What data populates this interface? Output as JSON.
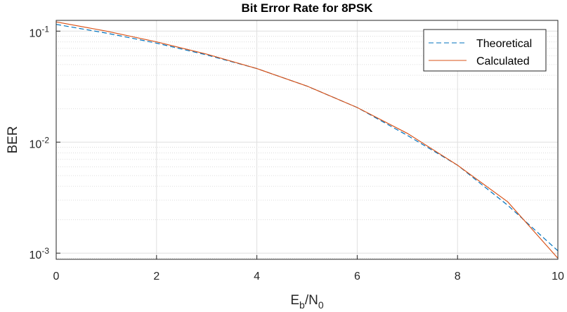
{
  "chart_data": {
    "type": "line",
    "title": "Bit Error Rate for 8PSK",
    "xlabel": {
      "base": "E",
      "sub1": "b",
      "mid": "/N",
      "sub2": "0"
    },
    "ylabel": "BER",
    "xlim": [
      0,
      10
    ],
    "ylim": [
      0.00088,
      0.125
    ],
    "yscale": "log",
    "grid": true,
    "minor_grid": true,
    "legend_position": "top-right",
    "x_ticks": [
      "0",
      "2",
      "4",
      "6",
      "8",
      "10"
    ],
    "y_ticks": [
      {
        "value": 0.1,
        "base": "10",
        "exp": "-1"
      },
      {
        "value": 0.01,
        "base": "10",
        "exp": "-2"
      },
      {
        "value": 0.001,
        "base": "10",
        "exp": "-3"
      }
    ],
    "x": [
      0,
      1,
      2,
      3,
      4,
      5,
      6,
      7,
      8,
      9,
      10
    ],
    "series": [
      {
        "name": "Theoretical",
        "style": "dashed",
        "color": "#0072BD",
        "values": [
          0.115,
          0.096,
          0.078,
          0.061,
          0.046,
          0.032,
          0.0205,
          0.0115,
          0.0062,
          0.0027,
          0.00105
        ]
      },
      {
        "name": "Calculated",
        "style": "solid",
        "color": "#D95319",
        "values": [
          0.121,
          0.1,
          0.08,
          0.062,
          0.046,
          0.032,
          0.0205,
          0.012,
          0.0062,
          0.0029,
          0.0009
        ]
      }
    ]
  }
}
